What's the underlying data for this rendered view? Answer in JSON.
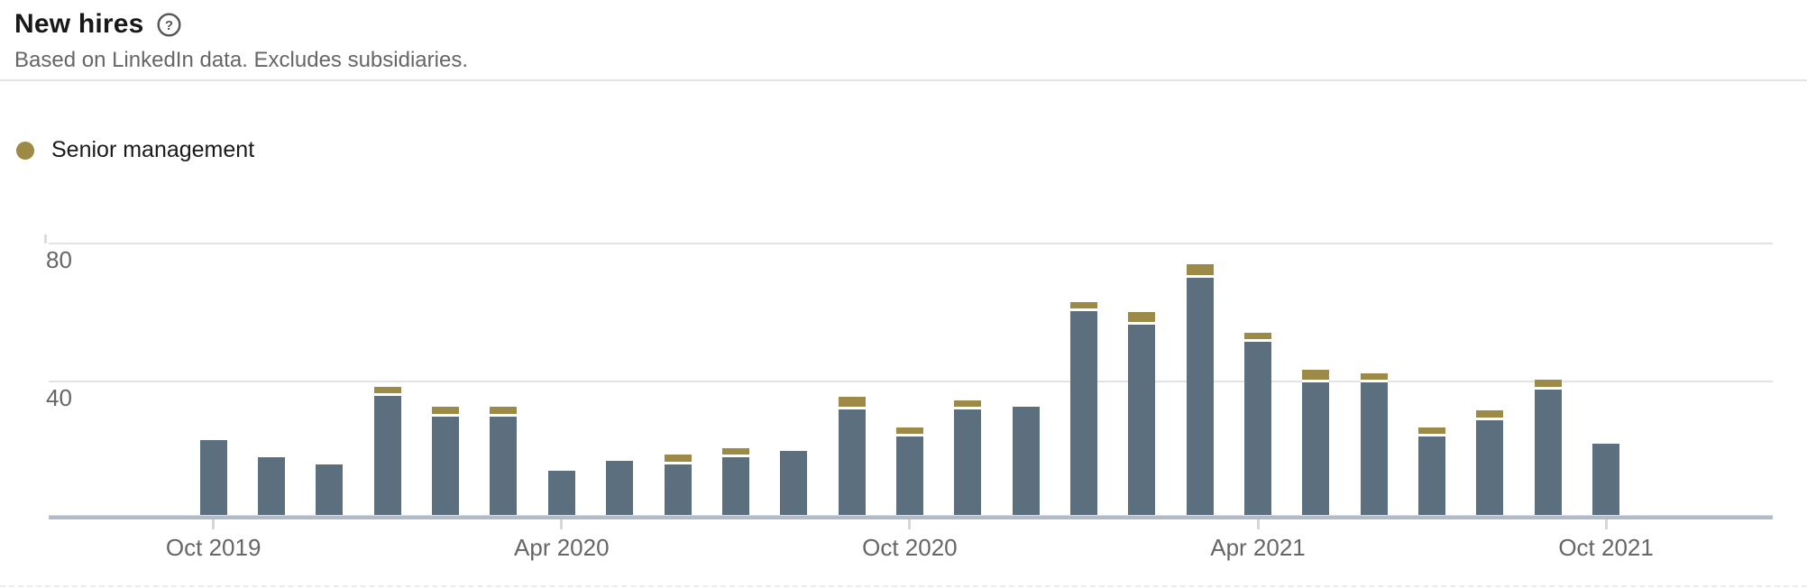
{
  "header": {
    "title": "New hires",
    "subtitle": "Based on LinkedIn data. Excludes subsidiaries."
  },
  "legend": {
    "items": [
      {
        "label": "Senior management",
        "color": "#9c8a46"
      }
    ]
  },
  "colors": {
    "bar": "#5c6f7e",
    "senior_accent": "#9c8a46",
    "axis_line": "#b2bbc8",
    "gridline": "#e3e3e3",
    "text_muted": "#666666",
    "text_dark": "#1a1a1a"
  },
  "chart_data": {
    "type": "bar",
    "stacked": true,
    "title": "New hires",
    "categories": [
      "Oct 2019",
      "Nov 2019",
      "Dec 2019",
      "Jan 2020",
      "Feb 2020",
      "Mar 2020",
      "Apr 2020",
      "May 2020",
      "Jun 2020",
      "Jul 2020",
      "Aug 2020",
      "Sep 2020",
      "Oct 2020",
      "Nov 2020",
      "Dec 2020",
      "Jan 2021",
      "Feb 2021",
      "Mar 2021",
      "Apr 2021",
      "May 2021",
      "Jun 2021",
      "Jul 2021",
      "Aug 2021",
      "Sep 2021",
      "Oct 2021"
    ],
    "series": [
      {
        "name": "New hires",
        "color": "#5c6f7e",
        "values": [
          22,
          17,
          15,
          35,
          29,
          29,
          13,
          16,
          15,
          17,
          19,
          31,
          23,
          31,
          32,
          60,
          56,
          70,
          51,
          39,
          39,
          23,
          28,
          37,
          21
        ]
      },
      {
        "name": "Senior management",
        "color": "#9c8a46",
        "values": [
          0,
          0,
          0,
          2,
          2,
          2,
          0,
          0,
          2,
          2,
          0,
          3,
          2,
          2,
          0,
          2,
          3,
          3,
          2,
          3,
          2,
          2,
          2,
          2,
          0
        ]
      }
    ],
    "x_tick_labels": [
      "Oct 2019",
      "Apr 2020",
      "Oct 2020",
      "Apr 2021",
      "Oct 2021"
    ],
    "x_tick_indices": [
      0,
      6,
      12,
      18,
      24
    ],
    "y_ticks": [
      80,
      40
    ],
    "ylim": [
      0,
      80
    ],
    "grid": "horizontal",
    "legend_position": "top-left"
  }
}
